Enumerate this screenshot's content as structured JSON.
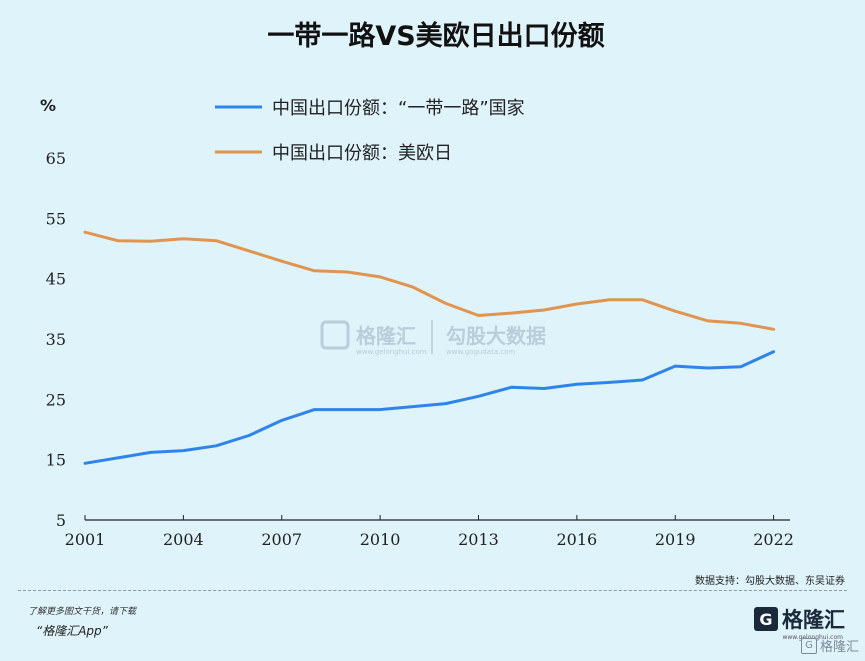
{
  "chart_data": {
    "type": "line",
    "title": "一带一路VS美欧日出口份额",
    "ylabel": "%",
    "ylim": [
      5,
      65
    ],
    "yticks": [
      5,
      15,
      25,
      35,
      45,
      55,
      65
    ],
    "xlim": [
      2001,
      2022.5
    ],
    "xticks": [
      2001,
      2004,
      2007,
      2010,
      2013,
      2016,
      2019,
      2022
    ],
    "legend_position": "top",
    "series": [
      {
        "name": "中国出口份额：“一带一路”国家",
        "color": "#2f84ea",
        "x": [
          2001,
          2002,
          2003,
          2004,
          2005,
          2006,
          2007,
          2008,
          2009,
          2010,
          2011,
          2012,
          2013,
          2014,
          2015,
          2016,
          2017,
          2018,
          2019,
          2020,
          2021,
          2022
        ],
        "y": [
          14.4,
          15.3,
          16.2,
          16.5,
          17.3,
          19.0,
          21.5,
          23.3,
          23.3,
          23.3,
          23.8,
          24.3,
          25.5,
          27.0,
          26.8,
          27.5,
          27.8,
          28.2,
          30.5,
          30.2,
          30.4,
          32.9
        ]
      },
      {
        "name": "中国出口份额：美欧日",
        "color": "#e0944f",
        "x": [
          2001,
          2002,
          2003,
          2004,
          2005,
          2006,
          2007,
          2008,
          2009,
          2010,
          2011,
          2012,
          2013,
          2014,
          2015,
          2016,
          2017,
          2018,
          2019,
          2020,
          2021,
          2022
        ],
        "y": [
          52.7,
          51.3,
          51.2,
          51.6,
          51.3,
          49.6,
          47.9,
          46.3,
          46.1,
          45.3,
          43.6,
          40.9,
          38.9,
          39.3,
          39.8,
          40.8,
          41.5,
          41.5,
          39.6,
          38.0,
          37.6,
          36.6
        ]
      }
    ]
  },
  "source": "数据支持：勾股大数据、东吴证券",
  "watermark": {
    "logo_text": "格隆汇",
    "logo_sub": "www.gelonghui.com",
    "brand2_text": "勾股大数据",
    "brand2_sub": "www.gogudata.com"
  },
  "footer": {
    "line1": "了解更多图文干货，请下载",
    "line2": "“格隆汇App”",
    "brand_letter": "G",
    "brand_name": "格隆汇",
    "brand_url": "www.gelonghui.com",
    "corner_letter": "G",
    "corner_name": "格隆汇"
  }
}
